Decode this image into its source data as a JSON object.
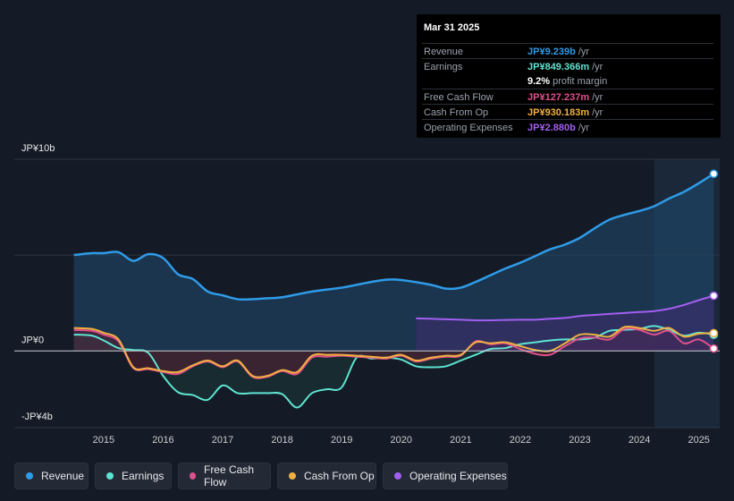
{
  "tooltip": {
    "date": "Mar 31 2025",
    "rows": [
      {
        "label": "Revenue",
        "value": "JP¥9.239b",
        "unit": "/yr",
        "color": "#2f9be8"
      },
      {
        "label": "Earnings",
        "value": "JP¥849.366m",
        "unit": "/yr",
        "color": "#5ee3d0"
      },
      {
        "label": "",
        "value": "9.2%",
        "unit": "profit margin",
        "color": "#ffffff"
      },
      {
        "label": "Free Cash Flow",
        "value": "JP¥127.237m",
        "unit": "/yr",
        "color": "#e0508a"
      },
      {
        "label": "Cash From Op",
        "value": "JP¥930.183m",
        "unit": "/yr",
        "color": "#f0b040"
      },
      {
        "label": "Operating Expenses",
        "value": "JP¥2.880b",
        "unit": "/yr",
        "color": "#a35ff0"
      }
    ]
  },
  "legend": [
    {
      "label": "Revenue",
      "color": "#2f9be8"
    },
    {
      "label": "Earnings",
      "color": "#5ee3d0"
    },
    {
      "label": "Free Cash Flow",
      "color": "#e0508a"
    },
    {
      "label": "Cash From Op",
      "color": "#f0b040"
    },
    {
      "label": "Operating Expenses",
      "color": "#a35ff0"
    }
  ],
  "chart_data": {
    "type": "area",
    "title": "",
    "ylim": [
      -4,
      10
    ],
    "y_unit": "JP¥ billions",
    "y_tick_labels": [
      {
        "value": 10,
        "label": "JP¥10b"
      },
      {
        "value": 0,
        "label": "JP¥0"
      },
      {
        "value": -4,
        "label": "-JP¥4b"
      }
    ],
    "x_tick_labels": [
      "2015",
      "2016",
      "2017",
      "2018",
      "2019",
      "2020",
      "2021",
      "2022",
      "2023",
      "2024",
      "2025"
    ],
    "x_ticks": [
      2015,
      2016,
      2017,
      2018,
      2019,
      2020,
      2021,
      2022,
      2023,
      2024,
      2025
    ],
    "xlim": [
      2013.5,
      2025.35
    ],
    "forecast_start": 2024.25,
    "series": [
      {
        "name": "Revenue",
        "color": "#2f9be8",
        "fill": true,
        "x": [
          2014.5,
          2014.8,
          2015.0,
          2015.25,
          2015.5,
          2015.75,
          2016.0,
          2016.25,
          2016.5,
          2016.75,
          2017.0,
          2017.25,
          2017.5,
          2017.75,
          2018.0,
          2018.5,
          2019.0,
          2019.25,
          2019.5,
          2019.75,
          2020.0,
          2020.5,
          2020.75,
          2021.0,
          2021.25,
          2021.5,
          2021.75,
          2022.0,
          2022.25,
          2022.5,
          2022.75,
          2023.0,
          2023.25,
          2023.5,
          2023.75,
          2024.0,
          2024.25,
          2024.5,
          2024.75,
          2025.0,
          2025.25
        ],
        "values": [
          5.0,
          5.1,
          5.1,
          5.15,
          4.7,
          5.05,
          4.85,
          4.0,
          3.75,
          3.1,
          2.9,
          2.7,
          2.7,
          2.75,
          2.8,
          3.1,
          3.3,
          3.45,
          3.6,
          3.72,
          3.7,
          3.45,
          3.25,
          3.3,
          3.6,
          3.95,
          4.3,
          4.6,
          4.95,
          5.3,
          5.55,
          5.9,
          6.4,
          6.85,
          7.1,
          7.3,
          7.55,
          7.95,
          8.3,
          8.75,
          9.239
        ]
      },
      {
        "name": "Earnings",
        "color": "#5ee3d0",
        "fill": true,
        "x": [
          2014.5,
          2014.8,
          2015.0,
          2015.25,
          2015.5,
          2015.75,
          2016.0,
          2016.25,
          2016.5,
          2016.75,
          2017.0,
          2017.25,
          2017.5,
          2017.75,
          2018.0,
          2018.25,
          2018.5,
          2018.75,
          2019.0,
          2019.25,
          2019.5,
          2019.75,
          2020.0,
          2020.25,
          2020.5,
          2020.75,
          2021.0,
          2021.25,
          2021.5,
          2021.75,
          2022.0,
          2022.25,
          2022.5,
          2022.75,
          2023.0,
          2023.25,
          2023.5,
          2023.75,
          2024.0,
          2024.25,
          2024.5,
          2024.75,
          2025.0,
          2025.25
        ],
        "values": [
          0.85,
          0.8,
          0.55,
          0.15,
          0.05,
          -0.1,
          -1.3,
          -2.15,
          -2.3,
          -2.55,
          -1.8,
          -2.2,
          -2.2,
          -2.2,
          -2.25,
          -2.95,
          -2.2,
          -2.0,
          -1.9,
          -0.35,
          -0.4,
          -0.35,
          -0.45,
          -0.8,
          -0.85,
          -0.8,
          -0.5,
          -0.2,
          0.1,
          0.15,
          0.35,
          0.45,
          0.55,
          0.6,
          0.6,
          0.7,
          1.05,
          1.1,
          1.15,
          1.3,
          1.1,
          0.8,
          0.95,
          0.849
        ]
      },
      {
        "name": "Free Cash Flow",
        "color": "#e0508a",
        "fill": true,
        "x": [
          2014.5,
          2014.8,
          2015.0,
          2015.25,
          2015.5,
          2015.75,
          2016.0,
          2016.25,
          2016.5,
          2016.75,
          2017.0,
          2017.25,
          2017.5,
          2017.75,
          2018.0,
          2018.25,
          2018.5,
          2018.75,
          2019.0,
          2019.25,
          2019.5,
          2019.75,
          2020.0,
          2020.25,
          2020.5,
          2020.75,
          2021.0,
          2021.25,
          2021.5,
          2021.75,
          2022.0,
          2022.25,
          2022.5,
          2022.75,
          2023.0,
          2023.25,
          2023.5,
          2023.75,
          2024.0,
          2024.25,
          2024.5,
          2024.75,
          2025.0,
          2025.25
        ],
        "values": [
          1.1,
          1.05,
          0.85,
          0.5,
          -0.9,
          -0.95,
          -1.1,
          -1.2,
          -0.8,
          -0.55,
          -0.85,
          -0.55,
          -1.35,
          -1.35,
          -1.05,
          -1.2,
          -0.35,
          -0.3,
          -0.25,
          -0.3,
          -0.35,
          -0.4,
          -0.25,
          -0.55,
          -0.4,
          -0.3,
          -0.25,
          0.5,
          0.35,
          0.4,
          0.1,
          -0.15,
          -0.2,
          0.25,
          0.65,
          0.7,
          0.6,
          1.15,
          1.1,
          0.85,
          1.05,
          0.4,
          0.6,
          0.127
        ]
      },
      {
        "name": "Cash From Op",
        "color": "#f0b040",
        "fill": false,
        "x": [
          2014.5,
          2014.8,
          2015.0,
          2015.25,
          2015.5,
          2015.75,
          2016.0,
          2016.25,
          2016.5,
          2016.75,
          2017.0,
          2017.25,
          2017.5,
          2017.75,
          2018.0,
          2018.25,
          2018.5,
          2018.75,
          2019.0,
          2019.25,
          2019.5,
          2019.75,
          2020.0,
          2020.25,
          2020.5,
          2020.75,
          2021.0,
          2021.25,
          2021.5,
          2021.75,
          2022.0,
          2022.25,
          2022.5,
          2022.75,
          2023.0,
          2023.25,
          2023.5,
          2023.75,
          2024.0,
          2024.25,
          2024.5,
          2024.75,
          2025.0,
          2025.25
        ],
        "values": [
          1.2,
          1.15,
          0.95,
          0.6,
          -0.85,
          -0.9,
          -1.05,
          -1.1,
          -0.75,
          -0.5,
          -0.8,
          -0.5,
          -1.3,
          -1.3,
          -1.0,
          -1.1,
          -0.25,
          -0.2,
          -0.2,
          -0.25,
          -0.3,
          -0.35,
          -0.2,
          -0.5,
          -0.35,
          -0.25,
          -0.2,
          0.45,
          0.4,
          0.45,
          0.25,
          0.05,
          0.0,
          0.4,
          0.85,
          0.85,
          0.75,
          1.25,
          1.2,
          1.05,
          1.2,
          0.75,
          0.9,
          0.93
        ]
      },
      {
        "name": "Operating Expenses",
        "color": "#a35ff0",
        "fill": true,
        "x": [
          2020.25,
          2020.5,
          2020.75,
          2021.0,
          2021.25,
          2021.5,
          2021.75,
          2022.0,
          2022.25,
          2022.5,
          2022.75,
          2023.0,
          2023.25,
          2023.5,
          2023.75,
          2024.0,
          2024.25,
          2024.5,
          2024.75,
          2025.0,
          2025.25
        ],
        "values": [
          1.7,
          1.68,
          1.65,
          1.63,
          1.6,
          1.6,
          1.62,
          1.63,
          1.63,
          1.68,
          1.72,
          1.82,
          1.88,
          1.93,
          1.98,
          2.03,
          2.08,
          2.2,
          2.4,
          2.65,
          2.88
        ]
      }
    ]
  }
}
